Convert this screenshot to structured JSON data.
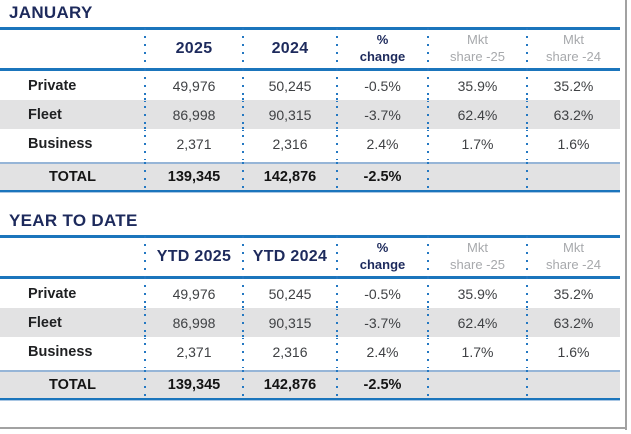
{
  "colors": {
    "navy": "#1d2a5c",
    "blue_line": "#1b75bc",
    "dotted_separator": "#2478c2",
    "gray_header": "#a7a9ac",
    "row_stripe": "#e2e2e3",
    "body_text": "#3f4144",
    "total_top_border": "#96b5d7"
  },
  "tables": [
    {
      "title": "JANUARY",
      "columns": {
        "c1": "2025",
        "c2": "2024",
        "pct_line1": "%",
        "pct_line2": "change",
        "mkt25_line1": "Mkt",
        "mkt25_line2": "share -25",
        "mkt24_line1": "Mkt",
        "mkt24_line2": "share -24"
      },
      "rows": [
        {
          "label": "Private",
          "v1": "49,976",
          "v2": "50,245",
          "pct": "-0.5%",
          "m25": "35.9%",
          "m24": "35.2%"
        },
        {
          "label": "Fleet",
          "v1": "86,998",
          "v2": "90,315",
          "pct": "-3.7%",
          "m25": "62.4%",
          "m24": "63.2%"
        },
        {
          "label": "Business",
          "v1": "2,371",
          "v2": "2,316",
          "pct": "2.4%",
          "m25": "1.7%",
          "m24": "1.6%"
        }
      ],
      "total": {
        "label": "TOTAL",
        "v1": "139,345",
        "v2": "142,876",
        "pct": "-2.5%",
        "m25": "",
        "m24": ""
      }
    },
    {
      "title": "YEAR TO DATE",
      "columns": {
        "c1": "YTD 2025",
        "c2": "YTD 2024",
        "pct_line1": "%",
        "pct_line2": "change",
        "mkt25_line1": "Mkt",
        "mkt25_line2": "share -25",
        "mkt24_line1": "Mkt",
        "mkt24_line2": "share -24"
      },
      "rows": [
        {
          "label": "Private",
          "v1": "49,976",
          "v2": "50,245",
          "pct": "-0.5%",
          "m25": "35.9%",
          "m24": "35.2%"
        },
        {
          "label": "Fleet",
          "v1": "86,998",
          "v2": "90,315",
          "pct": "-3.7%",
          "m25": "62.4%",
          "m24": "63.2%"
        },
        {
          "label": "Business",
          "v1": "2,371",
          "v2": "2,316",
          "pct": "2.4%",
          "m25": "1.7%",
          "m24": "1.6%"
        }
      ],
      "total": {
        "label": "TOTAL",
        "v1": "139,345",
        "v2": "142,876",
        "pct": "-2.5%",
        "m25": "",
        "m24": ""
      }
    }
  ]
}
